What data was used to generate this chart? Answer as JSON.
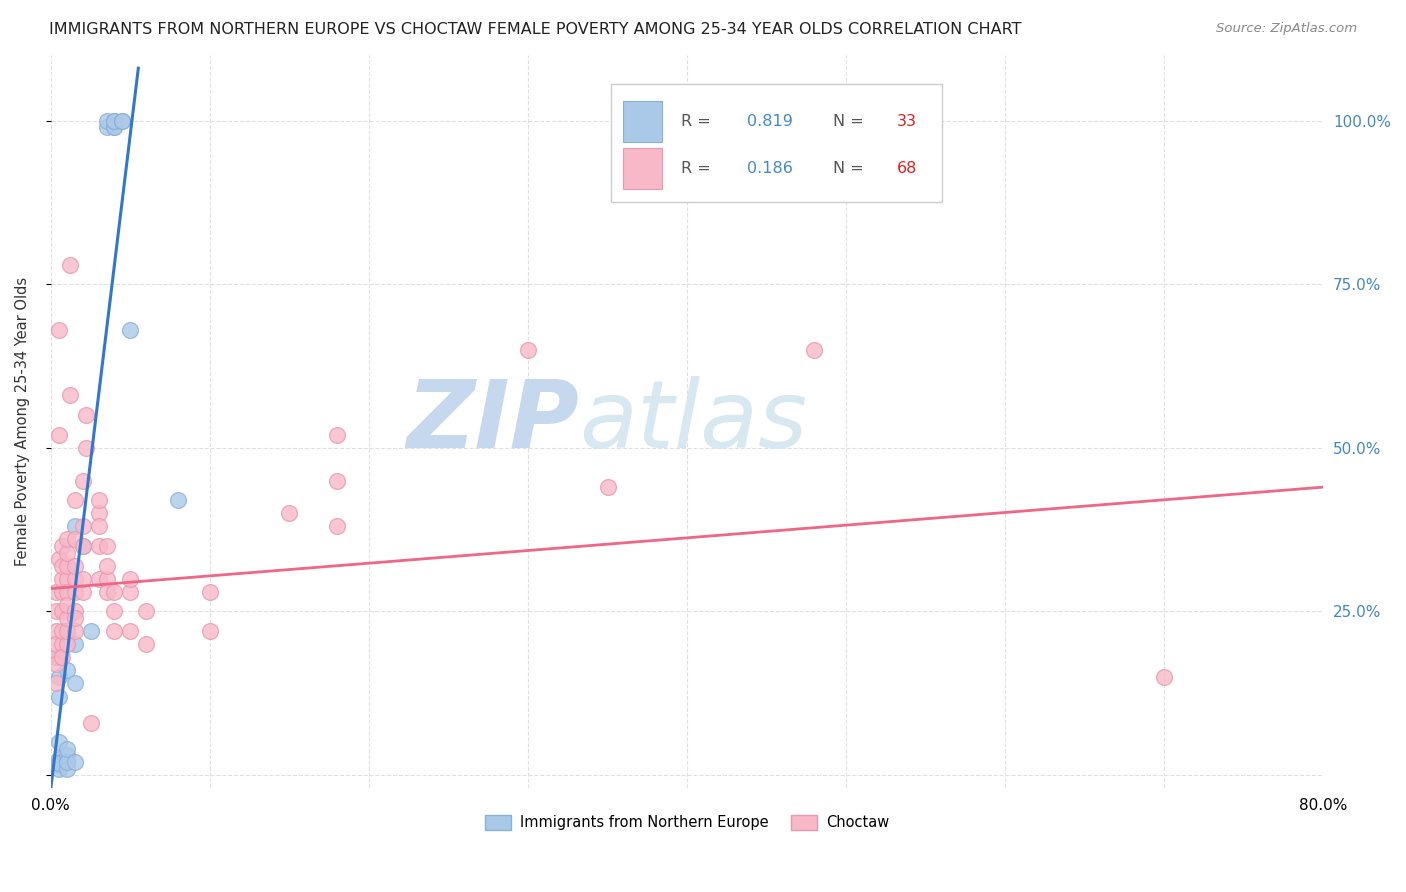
{
  "title": "IMMIGRANTS FROM NORTHERN EUROPE VS CHOCTAW FEMALE POVERTY AMONG 25-34 YEAR OLDS CORRELATION CHART",
  "source": "Source: ZipAtlas.com",
  "ylabel": "Female Poverty Among 25-34 Year Olds",
  "watermark_zip": "ZIP",
  "watermark_atlas": "atlas",
  "blue_points": [
    [
      0.5,
      2.0
    ],
    [
      0.5,
      2.5
    ],
    [
      0.5,
      1.5
    ],
    [
      0.5,
      1.0
    ],
    [
      0.5,
      1.8
    ],
    [
      0.5,
      12.0
    ],
    [
      0.5,
      18.0
    ],
    [
      0.5,
      5.0
    ],
    [
      0.5,
      15.0
    ],
    [
      1.0,
      3.0
    ],
    [
      1.0,
      2.0
    ],
    [
      1.0,
      1.0
    ],
    [
      1.0,
      2.0
    ],
    [
      1.0,
      4.0
    ],
    [
      1.0,
      16.0
    ],
    [
      1.0,
      20.0
    ],
    [
      1.0,
      22.0
    ],
    [
      1.5,
      2.0
    ],
    [
      1.5,
      14.0
    ],
    [
      1.5,
      20.0
    ],
    [
      1.5,
      38.0
    ],
    [
      2.0,
      35.0
    ],
    [
      2.5,
      22.0
    ],
    [
      3.5,
      99.0
    ],
    [
      3.5,
      100.0
    ],
    [
      4.0,
      99.0
    ],
    [
      4.0,
      99.0
    ],
    [
      4.0,
      100.0
    ],
    [
      4.0,
      100.0
    ],
    [
      4.5,
      100.0
    ],
    [
      4.5,
      100.0
    ],
    [
      5.0,
      68.0
    ],
    [
      8.0,
      42.0
    ]
  ],
  "pink_points": [
    [
      0.3,
      18.0
    ],
    [
      0.3,
      22.0
    ],
    [
      0.3,
      14.0
    ],
    [
      0.3,
      25.0
    ],
    [
      0.3,
      17.0
    ],
    [
      0.3,
      28.0
    ],
    [
      0.3,
      20.0
    ],
    [
      0.5,
      52.0
    ],
    [
      0.5,
      68.0
    ],
    [
      0.5,
      33.0
    ],
    [
      0.7,
      20.0
    ],
    [
      0.7,
      25.0
    ],
    [
      0.7,
      28.0
    ],
    [
      0.7,
      22.0
    ],
    [
      0.7,
      30.0
    ],
    [
      0.7,
      32.0
    ],
    [
      0.7,
      18.0
    ],
    [
      0.7,
      35.0
    ],
    [
      1.0,
      20.0
    ],
    [
      1.0,
      22.0
    ],
    [
      1.0,
      24.0
    ],
    [
      1.0,
      30.0
    ],
    [
      1.0,
      28.0
    ],
    [
      1.0,
      32.0
    ],
    [
      1.0,
      26.0
    ],
    [
      1.0,
      34.0
    ],
    [
      1.0,
      36.0
    ],
    [
      1.2,
      58.0
    ],
    [
      1.2,
      78.0
    ],
    [
      1.5,
      25.0
    ],
    [
      1.5,
      22.0
    ],
    [
      1.5,
      28.0
    ],
    [
      1.5,
      30.0
    ],
    [
      1.5,
      32.0
    ],
    [
      1.5,
      36.0
    ],
    [
      1.5,
      24.0
    ],
    [
      1.5,
      42.0
    ],
    [
      2.0,
      28.0
    ],
    [
      2.0,
      35.0
    ],
    [
      2.0,
      30.0
    ],
    [
      2.0,
      38.0
    ],
    [
      2.0,
      45.0
    ],
    [
      2.2,
      50.0
    ],
    [
      2.2,
      55.0
    ],
    [
      2.5,
      8.0
    ],
    [
      3.0,
      30.0
    ],
    [
      3.0,
      35.0
    ],
    [
      3.0,
      40.0
    ],
    [
      3.0,
      42.0
    ],
    [
      3.0,
      38.0
    ],
    [
      3.5,
      30.0
    ],
    [
      3.5,
      28.0
    ],
    [
      3.5,
      32.0
    ],
    [
      3.5,
      35.0
    ],
    [
      4.0,
      28.0
    ],
    [
      4.0,
      22.0
    ],
    [
      4.0,
      25.0
    ],
    [
      5.0,
      28.0
    ],
    [
      5.0,
      22.0
    ],
    [
      5.0,
      30.0
    ],
    [
      6.0,
      25.0
    ],
    [
      6.0,
      20.0
    ],
    [
      10.0,
      22.0
    ],
    [
      10.0,
      28.0
    ],
    [
      15.0,
      40.0
    ],
    [
      18.0,
      38.0
    ],
    [
      18.0,
      45.0
    ],
    [
      18.0,
      52.0
    ],
    [
      30.0,
      65.0
    ],
    [
      70.0,
      15.0
    ],
    [
      35.0,
      44.0
    ],
    [
      48.0,
      65.0
    ]
  ],
  "blue_line_x": [
    -0.5,
    5.5
  ],
  "blue_line_y": [
    -12.0,
    108.0
  ],
  "pink_line_x": [
    0.0,
    80.0
  ],
  "pink_line_y": [
    28.5,
    44.0
  ],
  "xlim": [
    0.0,
    80.0
  ],
  "ylim": [
    -2.0,
    110.0
  ],
  "xtick_positions": [
    0,
    10,
    20,
    30,
    40,
    50,
    60,
    70,
    80
  ],
  "ytick_positions": [
    0,
    25,
    50,
    75,
    100
  ],
  "grid_color": "#dddddd",
  "bg_color": "#ffffff",
  "blue_scatter_color": "#aac8e8",
  "blue_scatter_edge": "#88b0d8",
  "pink_scatter_color": "#f8b8c8",
  "pink_scatter_edge": "#e898b0",
  "blue_line_color": "#3377cc",
  "pink_line_color": "#ee6688",
  "right_axis_color": "#4488bb",
  "title_fontsize": 11.5,
  "source_fontsize": 9.5
}
